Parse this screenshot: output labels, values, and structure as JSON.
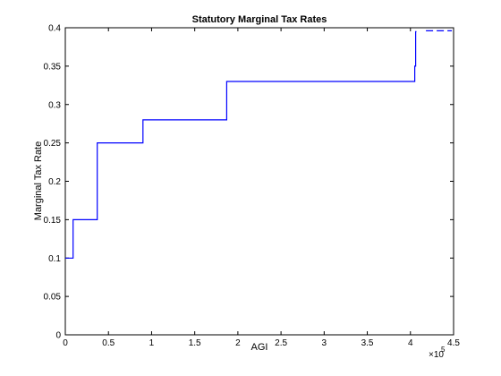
{
  "chart_data": {
    "type": "line",
    "title": "Statutory Marginal Tax Rates",
    "xlabel": "AGI",
    "ylabel": "Marginal Tax Rate",
    "x_exponent_base": "×10",
    "x_exponent_power": "5",
    "xlim": [
      0,
      4.5
    ],
    "ylim": [
      0,
      0.4
    ],
    "x_ticks": [
      "0",
      "0.5",
      "1",
      "1.5",
      "2",
      "2.5",
      "3",
      "3.5",
      "4",
      "4.5"
    ],
    "x_tick_values": [
      0,
      0.5,
      1,
      1.5,
      2,
      2.5,
      3,
      3.5,
      4,
      4.5
    ],
    "y_ticks": [
      "0",
      "0.05",
      "0.1",
      "0.15",
      "0.2",
      "0.25",
      "0.3",
      "0.35",
      "0.4"
    ],
    "y_tick_values": [
      0,
      0.05,
      0.1,
      0.15,
      0.2,
      0.25,
      0.3,
      0.35,
      0.4
    ],
    "grid": false,
    "line_color": "#0000ff",
    "series": [
      {
        "style": "solid",
        "x": [
          0,
          0.09,
          0.09,
          0.37,
          0.37,
          0.9,
          0.9,
          1.87,
          1.87,
          4.05,
          4.05,
          4.06,
          4.06,
          4.07
        ],
        "y": [
          0.1,
          0.1,
          0.15,
          0.15,
          0.25,
          0.25,
          0.28,
          0.28,
          0.33,
          0.33,
          0.35,
          0.35,
          0.395,
          0.395
        ]
      },
      {
        "style": "dashed",
        "x": [
          4.18,
          4.48
        ],
        "y": [
          0.396,
          0.396
        ]
      }
    ]
  }
}
